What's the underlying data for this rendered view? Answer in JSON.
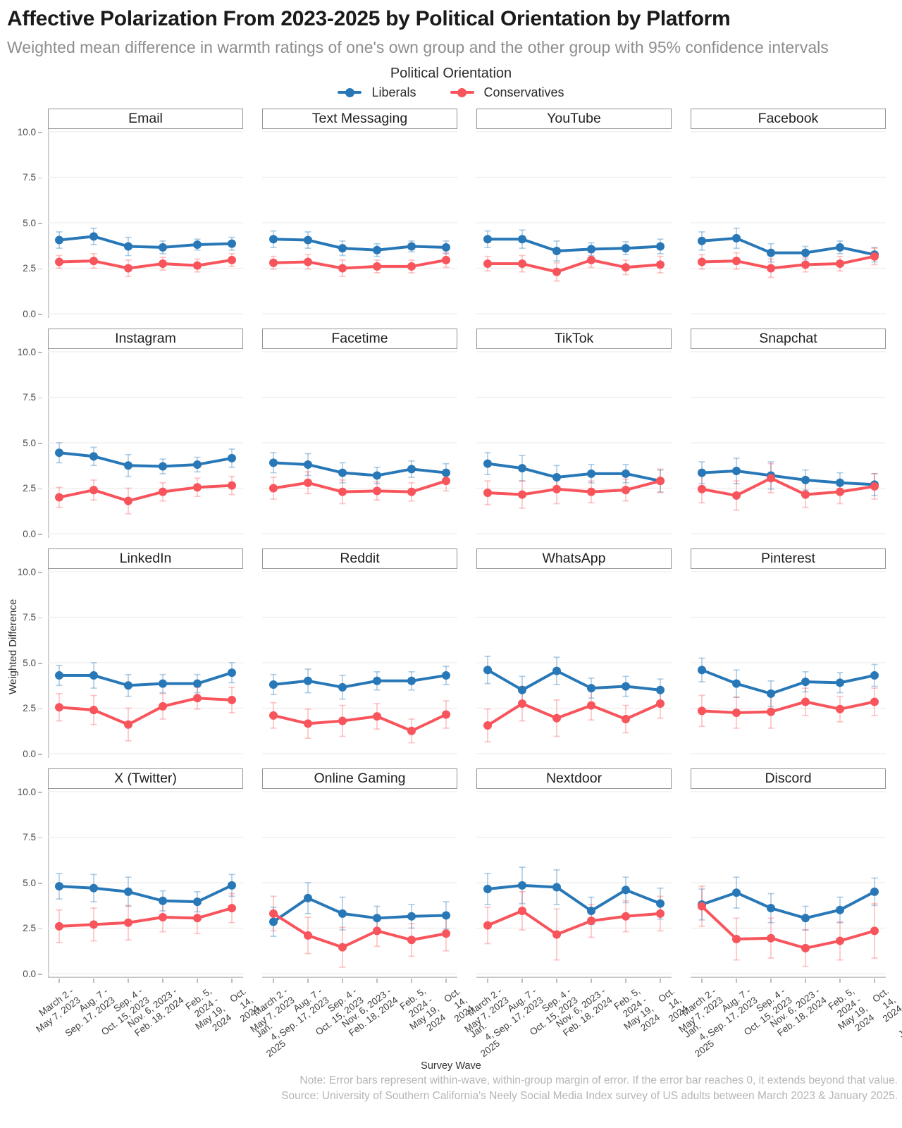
{
  "chart_data": {
    "type": "line",
    "title": "Affective Polarization From 2023-2025 by Political Orientation by Platform",
    "subtitle": "Weighted mean difference in warmth ratings of one's own group and the other group with 95% confidence intervals",
    "legend_title": "Political Orientation",
    "legend_position": "top-center",
    "series": [
      {
        "name": "Liberals",
        "color": "#2878B8",
        "ci_color": "rgba(40,120,184,0.35)"
      },
      {
        "name": "Conservatives",
        "color": "#F8545C",
        "ci_color": "rgba(248,84,92,0.33)"
      }
    ],
    "x_label": "Survey Wave",
    "y_label": "Weighted Difference",
    "y_ticks": [
      "10.0",
      "7.5",
      "5.0",
      "2.5",
      "0.0"
    ],
    "y_range": [
      0,
      10.4
    ],
    "grid": "horizontal-only",
    "facets": "4x4",
    "waves": [
      "March 2 -\nMay 7, 2023",
      "Aug. 7 -\nSep. 17, 2023",
      "Sep. 4 -\nOct. 15, 2023",
      "Nov. 6, 2023 -\nFeb. 18, 2024",
      "Feb. 5, 2024 -\nMay 19, 2024",
      "Oct. 14, 2024 -\nJan. 4, 2025"
    ],
    "panels": [
      {
        "title": "Email",
        "liberals": [
          4.05,
          4.25,
          3.7,
          3.65,
          3.8,
          3.85
        ],
        "liberals_ci": [
          0.45,
          0.45,
          0.5,
          0.35,
          0.3,
          0.35
        ],
        "conservatives": [
          2.85,
          2.9,
          2.5,
          2.75,
          2.65,
          2.95
        ],
        "conservatives_ci": [
          0.35,
          0.4,
          0.45,
          0.35,
          0.35,
          0.35
        ]
      },
      {
        "title": "Text Messaging",
        "liberals": [
          4.1,
          4.05,
          3.6,
          3.5,
          3.7,
          3.65
        ],
        "liberals_ci": [
          0.45,
          0.45,
          0.4,
          0.35,
          0.3,
          0.35
        ],
        "conservatives": [
          2.8,
          2.85,
          2.5,
          2.6,
          2.6,
          2.95
        ],
        "conservatives_ci": [
          0.35,
          0.4,
          0.45,
          0.35,
          0.35,
          0.4
        ]
      },
      {
        "title": "YouTube",
        "liberals": [
          4.1,
          4.1,
          3.45,
          3.55,
          3.6,
          3.7
        ],
        "liberals_ci": [
          0.45,
          0.5,
          0.55,
          0.35,
          0.35,
          0.4
        ],
        "conservatives": [
          2.75,
          2.75,
          2.3,
          2.95,
          2.55,
          2.7
        ],
        "conservatives_ci": [
          0.4,
          0.45,
          0.5,
          0.4,
          0.4,
          0.45
        ]
      },
      {
        "title": "Facebook",
        "liberals": [
          4.0,
          4.15,
          3.35,
          3.35,
          3.65,
          3.25
        ],
        "liberals_ci": [
          0.5,
          0.55,
          0.5,
          0.35,
          0.35,
          0.4
        ],
        "conservatives": [
          2.85,
          2.9,
          2.5,
          2.7,
          2.75,
          3.15
        ],
        "conservatives_ci": [
          0.4,
          0.45,
          0.5,
          0.4,
          0.4,
          0.45
        ]
      },
      {
        "title": "Instagram",
        "liberals": [
          4.45,
          4.25,
          3.75,
          3.7,
          3.8,
          4.15
        ],
        "liberals_ci": [
          0.55,
          0.5,
          0.6,
          0.4,
          0.4,
          0.5
        ],
        "conservatives": [
          2.0,
          2.4,
          1.8,
          2.3,
          2.55,
          2.65
        ],
        "conservatives_ci": [
          0.55,
          0.55,
          0.7,
          0.5,
          0.5,
          0.5
        ]
      },
      {
        "title": "Facetime",
        "liberals": [
          3.9,
          3.8,
          3.35,
          3.2,
          3.55,
          3.35
        ],
        "liberals_ci": [
          0.55,
          0.6,
          0.55,
          0.45,
          0.45,
          0.5
        ],
        "conservatives": [
          2.5,
          2.8,
          2.3,
          2.35,
          2.3,
          2.9
        ],
        "conservatives_ci": [
          0.6,
          0.6,
          0.65,
          0.5,
          0.5,
          0.55
        ]
      },
      {
        "title": "TikTok",
        "liberals": [
          3.85,
          3.6,
          3.1,
          3.3,
          3.3,
          2.9
        ],
        "liberals_ci": [
          0.6,
          0.7,
          0.65,
          0.5,
          0.5,
          0.6
        ],
        "conservatives": [
          2.25,
          2.15,
          2.45,
          2.3,
          2.4,
          2.9
        ],
        "conservatives_ci": [
          0.65,
          0.75,
          0.8,
          0.6,
          0.6,
          0.65
        ]
      },
      {
        "title": "Snapchat",
        "liberals": [
          3.35,
          3.45,
          3.2,
          2.95,
          2.8,
          2.7
        ],
        "liberals_ci": [
          0.6,
          0.7,
          0.75,
          0.55,
          0.55,
          0.6
        ],
        "conservatives": [
          2.45,
          2.1,
          3.05,
          2.15,
          2.3,
          2.6
        ],
        "conservatives_ci": [
          0.75,
          0.8,
          0.8,
          0.7,
          0.65,
          0.7
        ]
      },
      {
        "title": "LinkedIn",
        "liberals": [
          4.3,
          4.3,
          3.75,
          3.85,
          3.85,
          4.45
        ],
        "liberals_ci": [
          0.55,
          0.7,
          0.6,
          0.5,
          0.5,
          0.55
        ],
        "conservatives": [
          2.55,
          2.4,
          1.6,
          2.6,
          3.05,
          2.95
        ],
        "conservatives_ci": [
          0.75,
          0.8,
          0.9,
          0.7,
          0.6,
          0.7
        ]
      },
      {
        "title": "Reddit",
        "liberals": [
          3.8,
          4.0,
          3.65,
          4.0,
          4.0,
          4.3
        ],
        "liberals_ci": [
          0.55,
          0.65,
          0.65,
          0.5,
          0.5,
          0.5
        ],
        "conservatives": [
          2.1,
          1.65,
          1.8,
          2.05,
          1.25,
          2.15
        ],
        "conservatives_ci": [
          0.7,
          0.8,
          0.85,
          0.7,
          0.65,
          0.75
        ]
      },
      {
        "title": "WhatsApp",
        "liberals": [
          4.6,
          3.5,
          4.55,
          3.6,
          3.7,
          3.5
        ],
        "liberals_ci": [
          0.75,
          0.75,
          0.75,
          0.55,
          0.55,
          0.6
        ],
        "conservatives": [
          1.55,
          2.75,
          1.95,
          2.65,
          1.9,
          2.75
        ],
        "conservatives_ci": [
          0.9,
          0.95,
          1.0,
          0.8,
          0.75,
          0.8
        ]
      },
      {
        "title": "Pinterest",
        "liberals": [
          4.6,
          3.85,
          3.3,
          3.95,
          3.9,
          4.3
        ],
        "liberals_ci": [
          0.65,
          0.75,
          0.7,
          0.55,
          0.55,
          0.6
        ],
        "conservatives": [
          2.35,
          2.25,
          2.3,
          2.85,
          2.45,
          2.85
        ],
        "conservatives_ci": [
          0.85,
          0.85,
          0.9,
          0.75,
          0.7,
          0.75
        ]
      },
      {
        "title": "X (Twitter)",
        "liberals": [
          4.8,
          4.7,
          4.5,
          4.0,
          3.95,
          4.85
        ],
        "liberals_ci": [
          0.7,
          0.75,
          0.8,
          0.55,
          0.55,
          0.6
        ],
        "conservatives": [
          2.6,
          2.7,
          2.8,
          3.1,
          3.05,
          3.6
        ],
        "conservatives_ci": [
          0.9,
          0.9,
          0.95,
          0.8,
          0.85,
          0.8
        ]
      },
      {
        "title": "Online Gaming",
        "liberals": [
          2.85,
          4.15,
          3.3,
          3.05,
          3.15,
          3.2
        ],
        "liberals_ci": [
          0.8,
          0.85,
          0.9,
          0.65,
          0.65,
          0.75
        ],
        "conservatives": [
          3.3,
          2.1,
          1.45,
          2.35,
          1.85,
          2.2
        ],
        "conservatives_ci": [
          0.95,
          1.0,
          1.1,
          0.85,
          0.9,
          0.95
        ]
      },
      {
        "title": "Nextdoor",
        "liberals": [
          4.65,
          4.85,
          4.75,
          3.45,
          4.6,
          3.85
        ],
        "liberals_ci": [
          0.85,
          1.0,
          0.95,
          0.75,
          0.7,
          0.85
        ],
        "conservatives": [
          2.65,
          3.45,
          2.15,
          2.9,
          3.15,
          3.3
        ],
        "conservatives_ci": [
          1.0,
          1.05,
          1.4,
          0.9,
          0.85,
          0.95
        ]
      },
      {
        "title": "Discord",
        "liberals": [
          3.8,
          4.45,
          3.6,
          3.05,
          3.5,
          4.5
        ],
        "liberals_ci": [
          0.85,
          0.85,
          0.8,
          0.65,
          0.7,
          0.75
        ],
        "conservatives": [
          3.7,
          1.9,
          1.95,
          1.4,
          1.8,
          2.35
        ],
        "conservatives_ci": [
          1.1,
          1.15,
          1.1,
          1.0,
          1.05,
          1.5
        ]
      }
    ],
    "note": "Note: Error bars represent within-wave, within-group margin of error. If the error bar reaches 0, it extends beyond that value.",
    "source": "Source: University of Southern California's Neely Social Media Index survey of US adults between March 2023 & January 2025."
  }
}
